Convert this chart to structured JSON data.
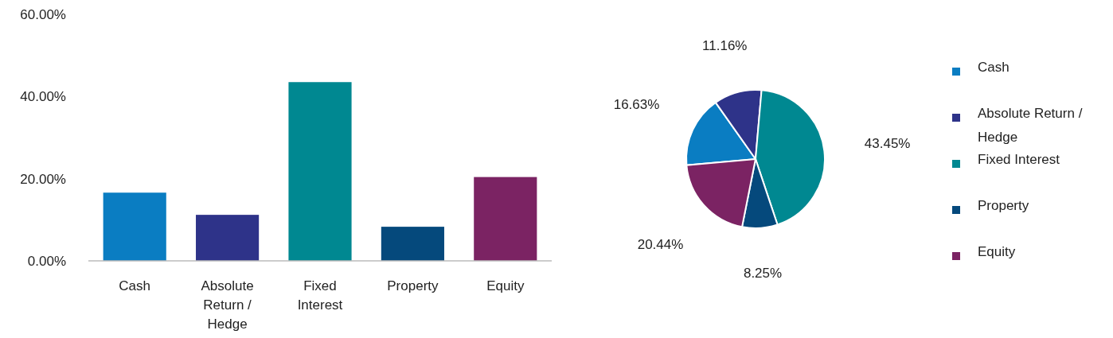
{
  "chart_data": [
    {
      "type": "bar",
      "categories": [
        "Cash",
        "Absolute Return / Hedge",
        "Fixed Interest",
        "Property",
        "Equity"
      ],
      "values": [
        16.6,
        11.2,
        43.5,
        8.3,
        20.4
      ],
      "colors": [
        "#0a7dc2",
        "#2e3389",
        "#008891",
        "#05497c",
        "#7b2363"
      ],
      "ylim": [
        0,
        60
      ],
      "yticks": [
        {
          "value": 0,
          "label": "0.00%"
        },
        {
          "value": 20,
          "label": "20.00%"
        },
        {
          "value": 40,
          "label": "40.00%"
        },
        {
          "value": 60,
          "label": "60.00%"
        }
      ],
      "grid": false
    },
    {
      "type": "pie",
      "categories": [
        "Cash",
        "Absolute Return / Hedge",
        "Fixed Interest",
        "Property",
        "Equity"
      ],
      "values": [
        16.63,
        11.16,
        43.45,
        8.25,
        20.44
      ],
      "colors": [
        "#0a7dc2",
        "#2e3389",
        "#008891",
        "#05497c",
        "#7b2363"
      ],
      "value_labels": [
        "16.63%",
        "11.16%",
        "43.45%",
        "8.25%",
        "20.44%"
      ],
      "legend": "right"
    }
  ]
}
